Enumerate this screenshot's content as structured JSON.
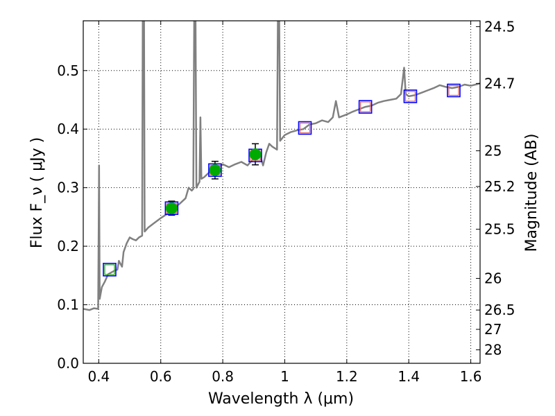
{
  "chart_data": {
    "type": "line",
    "xlabel": "Wavelength  λ (μm)",
    "ylabel": "Flux  F_ν ( μJy )",
    "y2label": "Magnitude (AB)",
    "xlim": [
      0.35,
      1.63
    ],
    "ylim": [
      0.0,
      0.585
    ],
    "x_ticks": [
      0.4,
      0.6,
      0.8,
      1.0,
      1.2,
      1.4,
      1.6
    ],
    "x_tick_labels": [
      "0.4",
      "0.6",
      "0.8",
      "1",
      "1.2",
      "1.4",
      "1.6"
    ],
    "y_ticks": [
      0.0,
      0.1,
      0.2,
      0.3,
      0.4,
      0.5
    ],
    "y_tick_labels": [
      "0.0",
      "0.1",
      "0.2",
      "0.3",
      "0.4",
      "0.5"
    ],
    "y2_ticks": [
      {
        "flux": 0.575,
        "label": "24.5"
      },
      {
        "flux": 0.478,
        "label": "24.7"
      },
      {
        "flux": 0.363,
        "label": "25"
      },
      {
        "flux": 0.302,
        "label": "25.2"
      },
      {
        "flux": 0.229,
        "label": "25.5"
      },
      {
        "flux": 0.145,
        "label": "26"
      },
      {
        "flux": 0.091,
        "label": "26.5"
      },
      {
        "flux": 0.058,
        "label": "27"
      },
      {
        "flux": 0.023,
        "label": "28"
      }
    ],
    "grid": true,
    "colors": {
      "model": "#808080",
      "observed": "#00aa00",
      "box": "#0000ff",
      "model_band": "#e07070",
      "model_band_first": "#33aa33",
      "errorbar": "#000000"
    },
    "series": [
      {
        "type": "line",
        "points": [
          [
            0.35,
            0.093
          ],
          [
            0.37,
            0.091
          ],
          [
            0.385,
            0.094
          ],
          [
            0.398,
            0.093
          ],
          [
            0.401,
            0.338
          ],
          [
            0.403,
            0.11
          ],
          [
            0.41,
            0.13
          ],
          [
            0.42,
            0.14
          ],
          [
            0.43,
            0.152
          ],
          [
            0.44,
            0.155
          ],
          [
            0.45,
            0.158
          ],
          [
            0.46,
            0.16
          ],
          [
            0.465,
            0.175
          ],
          [
            0.47,
            0.17
          ],
          [
            0.475,
            0.165
          ],
          [
            0.48,
            0.19
          ],
          [
            0.49,
            0.205
          ],
          [
            0.5,
            0.215
          ],
          [
            0.51,
            0.212
          ],
          [
            0.52,
            0.21
          ],
          [
            0.53,
            0.215
          ],
          [
            0.54,
            0.218
          ],
          [
            0.542,
            0.6
          ],
          [
            0.546,
            0.6
          ],
          [
            0.548,
            0.225
          ],
          [
            0.56,
            0.232
          ],
          [
            0.58,
            0.24
          ],
          [
            0.6,
            0.248
          ],
          [
            0.62,
            0.255
          ],
          [
            0.64,
            0.265
          ],
          [
            0.66,
            0.272
          ],
          [
            0.68,
            0.282
          ],
          [
            0.69,
            0.3
          ],
          [
            0.7,
            0.295
          ],
          [
            0.705,
            0.298
          ],
          [
            0.708,
            0.6
          ],
          [
            0.712,
            0.6
          ],
          [
            0.715,
            0.3
          ],
          [
            0.72,
            0.305
          ],
          [
            0.725,
            0.31
          ],
          [
            0.728,
            0.42
          ],
          [
            0.731,
            0.315
          ],
          [
            0.74,
            0.318
          ],
          [
            0.76,
            0.328
          ],
          [
            0.78,
            0.333
          ],
          [
            0.8,
            0.34
          ],
          [
            0.82,
            0.335
          ],
          [
            0.84,
            0.34
          ],
          [
            0.86,
            0.344
          ],
          [
            0.88,
            0.338
          ],
          [
            0.9,
            0.35
          ],
          [
            0.92,
            0.356
          ],
          [
            0.93,
            0.338
          ],
          [
            0.94,
            0.36
          ],
          [
            0.95,
            0.375
          ],
          [
            0.96,
            0.37
          ],
          [
            0.975,
            0.365
          ],
          [
            0.978,
            0.6
          ],
          [
            0.982,
            0.6
          ],
          [
            0.985,
            0.38
          ],
          [
            1.0,
            0.39
          ],
          [
            1.02,
            0.395
          ],
          [
            1.04,
            0.398
          ],
          [
            1.06,
            0.4
          ],
          [
            1.08,
            0.408
          ],
          [
            1.1,
            0.41
          ],
          [
            1.12,
            0.415
          ],
          [
            1.14,
            0.412
          ],
          [
            1.155,
            0.42
          ],
          [
            1.165,
            0.448
          ],
          [
            1.175,
            0.42
          ],
          [
            1.2,
            0.425
          ],
          [
            1.22,
            0.43
          ],
          [
            1.24,
            0.434
          ],
          [
            1.26,
            0.438
          ],
          [
            1.28,
            0.44
          ],
          [
            1.3,
            0.445
          ],
          [
            1.32,
            0.448
          ],
          [
            1.34,
            0.45
          ],
          [
            1.36,
            0.452
          ],
          [
            1.375,
            0.46
          ],
          [
            1.385,
            0.505
          ],
          [
            1.39,
            0.46
          ],
          [
            1.4,
            0.456
          ],
          [
            1.42,
            0.458
          ],
          [
            1.44,
            0.462
          ],
          [
            1.46,
            0.466
          ],
          [
            1.48,
            0.47
          ],
          [
            1.5,
            0.475
          ],
          [
            1.52,
            0.472
          ],
          [
            1.54,
            0.47
          ],
          [
            1.56,
            0.472
          ],
          [
            1.58,
            0.476
          ],
          [
            1.6,
            0.474
          ],
          [
            1.63,
            0.478
          ]
        ]
      },
      {
        "type": "scatter",
        "x": [
          0.635,
          0.775,
          0.905
        ],
        "y": [
          0.265,
          0.33,
          0.357
        ],
        "yerr": [
          0.012,
          0.015,
          0.018
        ]
      },
      {
        "type": "scatter",
        "x": [
          0.435,
          0.635,
          0.775,
          0.905,
          1.065,
          1.26,
          1.405,
          1.545
        ],
        "y": [
          0.16,
          0.265,
          0.33,
          0.355,
          0.402,
          0.438,
          0.456,
          0.466
        ]
      }
    ]
  }
}
